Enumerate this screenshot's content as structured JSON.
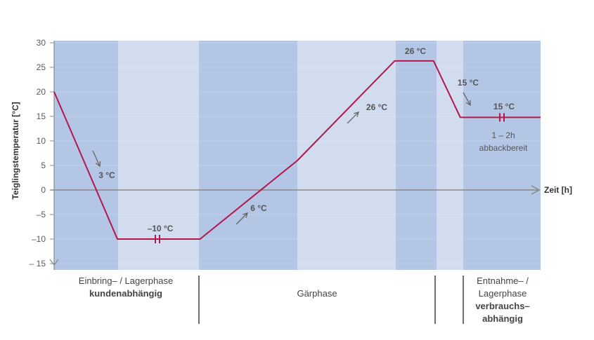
{
  "colors": {
    "band_dark": "#b4c6e6",
    "band_light": "#d2dcef",
    "curve": "#b3174a",
    "arrow": "#666666",
    "axis": "#888888"
  },
  "chart_data": {
    "type": "line",
    "title": "",
    "xlabel": "Zeit [h]",
    "ylabel": "Teiglingstemperatur [°C]",
    "ylim": [
      -15,
      30
    ],
    "yticks": [
      "30",
      "25",
      "20",
      "15",
      "10",
      "5",
      "0",
      "–5",
      "–10",
      "– 15"
    ],
    "ytick_values": [
      30,
      25,
      20,
      15,
      10,
      5,
      0,
      -5,
      -10,
      -15
    ],
    "x_numeric_ticks": false,
    "grid": true,
    "series": [
      {
        "name": "",
        "x": [
          0,
          1.3,
          3.0,
          5.0,
          7.0,
          7.8,
          8.35,
          10.0
        ],
        "y": [
          20,
          -10,
          -10,
          6,
          26.3,
          26.3,
          14.8,
          14.8
        ]
      }
    ],
    "annotations": [
      {
        "text": "3 °C"
      },
      {
        "text": "–10 °C"
      },
      {
        "text": "6 °C"
      },
      {
        "text": "26 °C"
      },
      {
        "text": "26 °C"
      },
      {
        "text": "15 °C"
      },
      {
        "text": "15 °C"
      },
      {
        "text": "1 – 2h"
      },
      {
        "text": "abbackbereit"
      }
    ],
    "phases": [
      {
        "line1": "Einbring– / Lagerphase",
        "line2": "kundenabhängig"
      },
      {
        "line1": "Gärphase",
        "line2": ""
      },
      {
        "line1": "Entnahme– /",
        "line2": "Lagerphase",
        "line3": "verbrauchs–",
        "line4": "abhängig"
      }
    ]
  }
}
